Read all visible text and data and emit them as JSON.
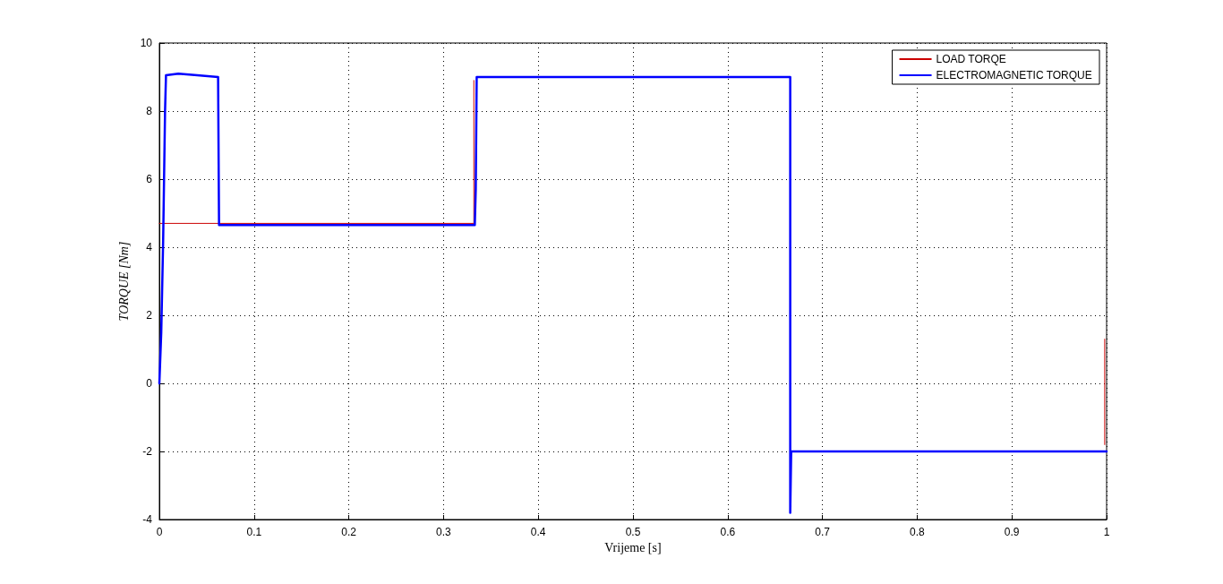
{
  "chart_data": {
    "type": "line",
    "xlabel": "Vrijeme [s]",
    "ylabel": "TORQUE [Nm]",
    "xlim": [
      0,
      1
    ],
    "xticks": [
      0,
      0.1,
      0.2,
      0.3,
      0.4,
      0.5,
      0.6,
      0.7,
      0.8,
      0.9,
      1
    ],
    "ylim": [
      -4,
      10
    ],
    "yticks": [
      -4,
      -2,
      0,
      2,
      4,
      6,
      8,
      10
    ],
    "grid": true,
    "legend": "top right",
    "line_style": "solid",
    "marker": "none",
    "series": [
      {
        "name": "LOAD TORQE",
        "color": "#cc0000",
        "x": [
          0,
          0.332,
          0.332,
          0.5,
          0.998,
          0.998
        ],
        "values": [
          4.7,
          4.7,
          8.9,
          null,
          -1.8,
          1.3
        ]
      },
      {
        "name": "ELECTROMAGNETIC TORQUE",
        "color": "#0000ff",
        "x": [
          0,
          0.002,
          0.004,
          0.006,
          0.007,
          0.02,
          0.04,
          0.062,
          0.063,
          0.333,
          0.334,
          0.335,
          0.666,
          0.666,
          0.667,
          1.0
        ],
        "values": [
          0,
          1.5,
          4.2,
          8.0,
          9.05,
          9.1,
          9.05,
          9.0,
          4.65,
          4.65,
          5.7,
          9.0,
          9.0,
          -3.8,
          -2.0,
          -2.0
        ]
      }
    ]
  }
}
